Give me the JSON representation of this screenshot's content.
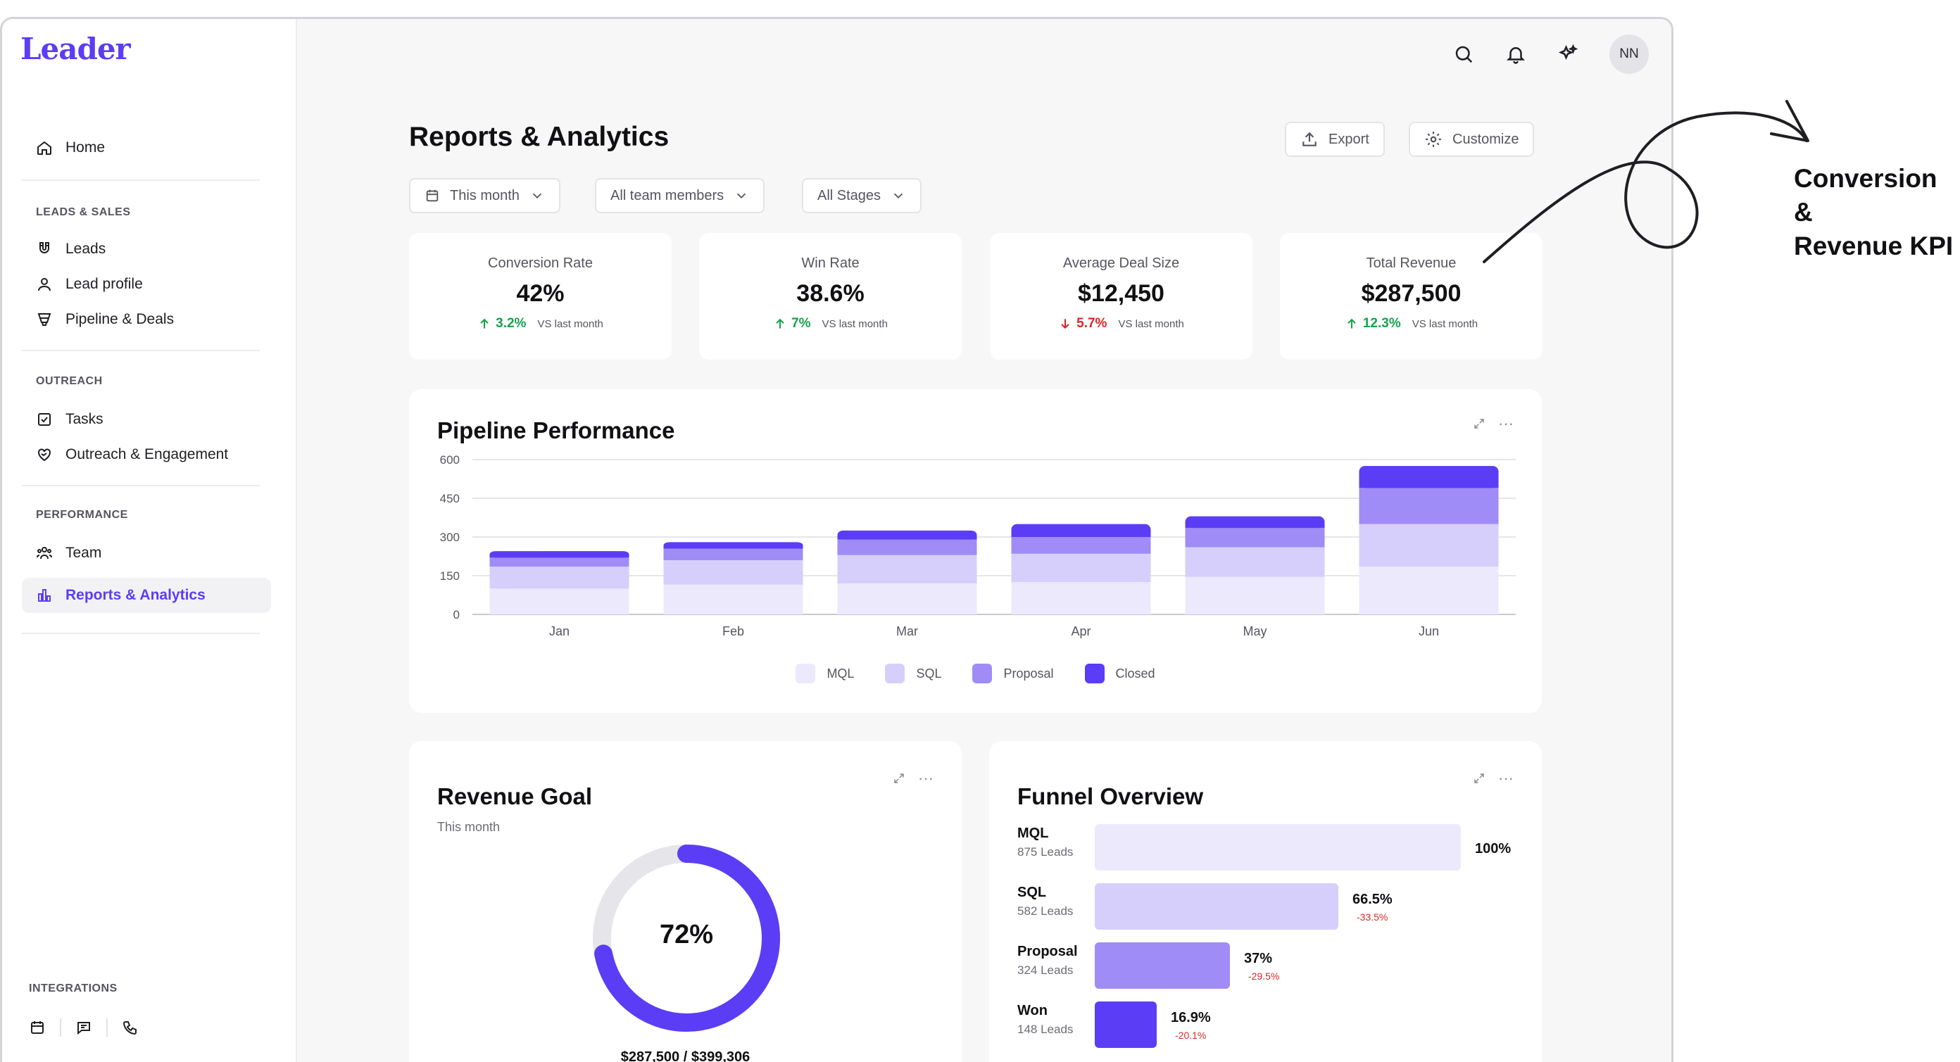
{
  "app": {
    "logo": "Leader",
    "avatar_initials": "NN"
  },
  "sidebar": {
    "home": "Home",
    "sections": [
      {
        "label": "LEADS & SALES",
        "items": [
          "Leads",
          "Lead profile",
          "Pipeline & Deals"
        ]
      },
      {
        "label": "OUTREACH",
        "items": [
          "Tasks",
          "Outreach & Engagement"
        ]
      },
      {
        "label": "PERFORMANCE",
        "items": [
          "Team",
          "Reports & Analytics"
        ]
      }
    ],
    "integrations_label": "INTEGRATIONS"
  },
  "header": {
    "title": "Reports & Analytics",
    "export_label": "Export",
    "customize_label": "Customize"
  },
  "filters": {
    "period": "This month",
    "team": "All team members",
    "stages": "All Stages"
  },
  "kpis": [
    {
      "label": "Conversion Rate",
      "value": "42%",
      "delta": "3.2%",
      "direction": "up",
      "vs": "VS last month"
    },
    {
      "label": "Win Rate",
      "value": "38.6%",
      "delta": "7%",
      "direction": "up",
      "vs": "VS last month"
    },
    {
      "label": "Average Deal Size",
      "value": "$12,450",
      "delta": "5.7%",
      "direction": "down",
      "vs": "VS last month"
    },
    {
      "label": "Total Revenue",
      "value": "$287,500",
      "delta": "12.3%",
      "direction": "up",
      "vs": "VS last month"
    }
  ],
  "pipeline": {
    "title": "Pipeline Performance",
    "legend": [
      "MQL",
      "SQL",
      "Proposal",
      "Closed"
    ]
  },
  "chart_data": {
    "type": "bar",
    "stacked": true,
    "categories": [
      "Jan",
      "Feb",
      "Mar",
      "Apr",
      "May",
      "Jun"
    ],
    "series": [
      {
        "name": "MQL",
        "values": [
          100,
          115,
          120,
          125,
          145,
          185
        ],
        "color": "#ece9fd"
      },
      {
        "name": "SQL",
        "values": [
          85,
          95,
          110,
          110,
          115,
          165
        ],
        "color": "#d6cffb"
      },
      {
        "name": "Proposal",
        "values": [
          35,
          45,
          60,
          65,
          75,
          140
        ],
        "color": "#a08cf7"
      },
      {
        "name": "Closed",
        "values": [
          25,
          25,
          35,
          50,
          45,
          85
        ],
        "color": "#5b3df5"
      }
    ],
    "ylim": [
      0,
      600
    ],
    "yticks": [
      0,
      150,
      300,
      450,
      600
    ],
    "grid": true,
    "legend_position": "bottom"
  },
  "revenue_goal": {
    "title": "Revenue Goal",
    "subtitle": "This month",
    "percent_label": "72%",
    "progress": 0.72,
    "amount": "$287,500 / $399,306"
  },
  "funnel": {
    "title": "Funnel Overview",
    "rows": [
      {
        "name": "MQL",
        "leads": "875 Leads",
        "pct": "100%",
        "drop": "",
        "share": 1.0,
        "color": "#ece9fd"
      },
      {
        "name": "SQL",
        "leads": "582 Leads",
        "pct": "66.5%",
        "drop": "-33.5%",
        "share": 0.665,
        "color": "#d6cffb"
      },
      {
        "name": "Proposal",
        "leads": "324 Leads",
        "pct": "37%",
        "drop": "-29.5%",
        "share": 0.37,
        "color": "#a08cf7"
      },
      {
        "name": "Won",
        "leads": "148 Leads",
        "pct": "16.9%",
        "drop": "-20.1%",
        "share": 0.169,
        "color": "#5b3df5"
      }
    ]
  },
  "annotation": {
    "line1": "Conversion &",
    "line2": "Revenue KPI"
  }
}
